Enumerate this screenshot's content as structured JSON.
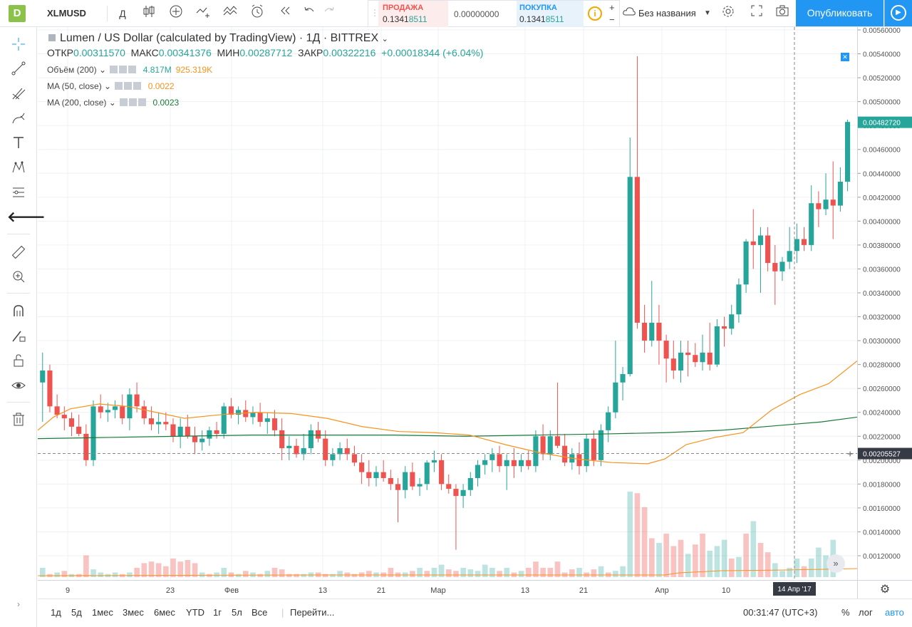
{
  "toolbar": {
    "logo": "D",
    "symbol": "XLMUSD",
    "interval": "Д",
    "sell": {
      "label": "ПРОДАЖА",
      "price_main": "0.1341",
      "price_tail": "8511"
    },
    "spread": "0.00000000",
    "buy": {
      "label": "ПОКУПКА",
      "price_main": "0.1341",
      "price_tail": "8511"
    },
    "plus": "+",
    "minus": "−",
    "layout_name": "Без названия",
    "publish": "Опубликовать"
  },
  "legend": {
    "title": "Lumen / US Dollar (calculated by TradingView) · 1Д · BITTREX",
    "open_label": "ОТКР",
    "open_value": "0.00311570",
    "high_label": "МАКС",
    "high_value": "0.00341376",
    "low_label": "МИН",
    "low_value": "0.00287712",
    "close_label": "ЗАКР",
    "close_value": "0.00322216",
    "change": "+0.00018344 (+6.04%)",
    "volume": {
      "label": "Объём (200)",
      "v1": "4.817M",
      "v2": "925.319K"
    },
    "ma50": {
      "label": "MA (50, close)",
      "value": "0.0022"
    },
    "ma200": {
      "label": "MA (200, close)",
      "value": "0.0023"
    }
  },
  "price_axis": {
    "ticks": [
      "0.00560000",
      "0.00540000",
      "0.00520000",
      "0.00500000",
      "0.00480000",
      "0.00460000",
      "0.00440000",
      "0.00420000",
      "0.00400000",
      "0.00380000",
      "0.00360000",
      "0.00340000",
      "0.00320000",
      "0.00300000",
      "0.00280000",
      "0.00260000",
      "0.00240000",
      "0.00220000",
      "0.00200000",
      "0.00180000",
      "0.00160000",
      "0.00140000",
      "0.00120000"
    ],
    "last_price": "0.00482720",
    "crosshair_price": "0.00205527"
  },
  "time_axis": {
    "labels": [
      "9",
      "23",
      "Фев",
      "13",
      "21",
      "Мар",
      "13",
      "21",
      "Апр",
      "10",
      "18"
    ],
    "crosshair_date": "14 Апр '17"
  },
  "bottom": {
    "ranges": [
      "1д",
      "5д",
      "1мес",
      "3мес",
      "6мес",
      "YTD",
      "1г",
      "5л",
      "Все"
    ],
    "goto": "Перейти...",
    "clock": "00:31:47 (UTC+3)",
    "percent": "%",
    "log": "лог",
    "auto": "авто"
  },
  "colors": {
    "up": "#26a69a",
    "down": "#ef5350",
    "ma50": "#f7931e",
    "ma200": "#1b7a3a",
    "accent": "#2196f3"
  },
  "chart_data": {
    "type": "candlestick",
    "ylim": [
      0.0011,
      0.0056
    ],
    "candles": [
      [
        0.00265,
        0.0029,
        0.00232,
        0.00275
      ],
      [
        0.00275,
        0.0028,
        0.0024,
        0.00245
      ],
      [
        0.00245,
        0.00255,
        0.00235,
        0.00238
      ],
      [
        0.00238,
        0.00245,
        0.00225,
        0.00235
      ],
      [
        0.00235,
        0.0024,
        0.0022,
        0.00228
      ],
      [
        0.00228,
        0.00238,
        0.0022,
        0.00222
      ],
      [
        0.00222,
        0.0023,
        0.00195,
        0.002
      ],
      [
        0.002,
        0.0025,
        0.00195,
        0.00245
      ],
      [
        0.00245,
        0.00255,
        0.00235,
        0.0024
      ],
      [
        0.0024,
        0.00248,
        0.00232,
        0.00242
      ],
      [
        0.00242,
        0.0025,
        0.00235,
        0.00245
      ],
      [
        0.00245,
        0.00255,
        0.0023,
        0.00235
      ],
      [
        0.00235,
        0.0026,
        0.00225,
        0.00255
      ],
      [
        0.00255,
        0.00265,
        0.0024,
        0.00245
      ],
      [
        0.00245,
        0.0025,
        0.0023,
        0.00235
      ],
      [
        0.00235,
        0.00245,
        0.00225,
        0.0023
      ],
      [
        0.0023,
        0.0024,
        0.00222,
        0.00232
      ],
      [
        0.00232,
        0.0024,
        0.00225,
        0.0023
      ],
      [
        0.0023,
        0.00235,
        0.00215,
        0.0022
      ],
      [
        0.0022,
        0.00235,
        0.0021,
        0.00228
      ],
      [
        0.00228,
        0.00238,
        0.00218,
        0.0022
      ],
      [
        0.0022,
        0.00228,
        0.00205,
        0.00215
      ],
      [
        0.00215,
        0.00225,
        0.00208,
        0.00218
      ],
      [
        0.00218,
        0.00228,
        0.00212,
        0.00225
      ],
      [
        0.00225,
        0.00232,
        0.00218,
        0.00222
      ],
      [
        0.00222,
        0.00248,
        0.00218,
        0.00245
      ],
      [
        0.00245,
        0.00252,
        0.00235,
        0.00238
      ],
      [
        0.00238,
        0.00245,
        0.0023,
        0.00242
      ],
      [
        0.00242,
        0.0025,
        0.00232,
        0.00236
      ],
      [
        0.00236,
        0.00245,
        0.0023,
        0.0024
      ],
      [
        0.0024,
        0.00248,
        0.00228,
        0.00232
      ],
      [
        0.00232,
        0.0024,
        0.00222,
        0.00235
      ],
      [
        0.00235,
        0.00242,
        0.0022,
        0.00225
      ],
      [
        0.00225,
        0.00235,
        0.002,
        0.0021
      ],
      [
        0.0021,
        0.0022,
        0.002,
        0.00212
      ],
      [
        0.00212,
        0.00218,
        0.00202,
        0.00205
      ],
      [
        0.00205,
        0.00222,
        0.002,
        0.0021
      ],
      [
        0.0021,
        0.0023,
        0.00205,
        0.00225
      ],
      [
        0.00225,
        0.00232,
        0.00215,
        0.00218
      ],
      [
        0.00218,
        0.00225,
        0.00195,
        0.002
      ],
      [
        0.002,
        0.0021,
        0.00195,
        0.00205
      ],
      [
        0.00205,
        0.00215,
        0.002,
        0.0021
      ],
      [
        0.0021,
        0.00218,
        0.002,
        0.00205
      ],
      [
        0.00205,
        0.00212,
        0.00195,
        0.00198
      ],
      [
        0.00198,
        0.00205,
        0.0018,
        0.0019
      ],
      [
        0.0019,
        0.002,
        0.00178,
        0.00185
      ],
      [
        0.00185,
        0.00195,
        0.00178,
        0.0019
      ],
      [
        0.0019,
        0.002,
        0.00182,
        0.00185
      ],
      [
        0.00185,
        0.00192,
        0.00175,
        0.0018
      ],
      [
        0.0018,
        0.00185,
        0.00148,
        0.00175
      ],
      [
        0.00175,
        0.00195,
        0.00168,
        0.0019
      ],
      [
        0.0019,
        0.00198,
        0.00175,
        0.00178
      ],
      [
        0.00178,
        0.00185,
        0.0017,
        0.0018
      ],
      [
        0.0018,
        0.002,
        0.00175,
        0.00198
      ],
      [
        0.00198,
        0.00208,
        0.0019,
        0.002
      ],
      [
        0.002,
        0.00205,
        0.00175,
        0.0018
      ],
      [
        0.0018,
        0.00188,
        0.00172,
        0.00176
      ],
      [
        0.00176,
        0.0018,
        0.00125,
        0.0017
      ],
      [
        0.0017,
        0.0018,
        0.0016,
        0.00175
      ],
      [
        0.00175,
        0.0019,
        0.0017,
        0.00185
      ],
      [
        0.00185,
        0.002,
        0.00178,
        0.00196
      ],
      [
        0.00196,
        0.00205,
        0.00188,
        0.002
      ],
      [
        0.002,
        0.0021,
        0.0019,
        0.00205
      ],
      [
        0.00205,
        0.00212,
        0.0019,
        0.00195
      ],
      [
        0.00195,
        0.00205,
        0.00175,
        0.002
      ],
      [
        0.002,
        0.0021,
        0.00185,
        0.00195
      ],
      [
        0.00195,
        0.00205,
        0.0019,
        0.002
      ],
      [
        0.002,
        0.00208,
        0.00192,
        0.00195
      ],
      [
        0.00195,
        0.00225,
        0.0019,
        0.0022
      ],
      [
        0.0022,
        0.0023,
        0.002,
        0.00205
      ],
      [
        0.00205,
        0.00225,
        0.002,
        0.0022
      ],
      [
        0.0022,
        0.00265,
        0.0021,
        0.00212
      ],
      [
        0.00212,
        0.00222,
        0.00195,
        0.00198
      ],
      [
        0.00198,
        0.0021,
        0.00192,
        0.00205
      ],
      [
        0.00205,
        0.00215,
        0.00188,
        0.00195
      ],
      [
        0.00195,
        0.00222,
        0.0019,
        0.00218
      ],
      [
        0.00218,
        0.00225,
        0.00195,
        0.002
      ],
      [
        0.002,
        0.0023,
        0.00195,
        0.00225
      ],
      [
        0.00225,
        0.00245,
        0.00215,
        0.0024
      ],
      [
        0.0024,
        0.003,
        0.00235,
        0.00265
      ],
      [
        0.00265,
        0.00278,
        0.0025,
        0.00272
      ],
      [
        0.00272,
        0.0047,
        0.0027,
        0.00437
      ],
      [
        0.00437,
        0.00538,
        0.0031,
        0.00315
      ],
      [
        0.00315,
        0.0033,
        0.0029,
        0.003
      ],
      [
        0.003,
        0.0035,
        0.00295,
        0.00315
      ],
      [
        0.00315,
        0.0033,
        0.0028,
        0.003
      ],
      [
        0.003,
        0.00305,
        0.00265,
        0.00285
      ],
      [
        0.00285,
        0.003,
        0.00268,
        0.00275
      ],
      [
        0.00275,
        0.003,
        0.00265,
        0.0029
      ],
      [
        0.0029,
        0.003,
        0.0027,
        0.00288
      ],
      [
        0.00288,
        0.00298,
        0.00278,
        0.00282
      ],
      [
        0.00282,
        0.00305,
        0.00275,
        0.0029
      ],
      [
        0.0029,
        0.00315,
        0.00275,
        0.0028
      ],
      [
        0.0028,
        0.00318,
        0.00278,
        0.00312
      ],
      [
        0.00312,
        0.0032,
        0.00295,
        0.0031
      ],
      [
        0.0031,
        0.0033,
        0.00305,
        0.00322
      ],
      [
        0.00322,
        0.00352,
        0.00315,
        0.00347
      ],
      [
        0.00347,
        0.00385,
        0.0034,
        0.00383
      ],
      [
        0.00383,
        0.0041,
        0.0036,
        0.0038
      ],
      [
        0.0038,
        0.00395,
        0.0034,
        0.00388
      ],
      [
        0.00388,
        0.00395,
        0.00358,
        0.00365
      ],
      [
        0.00365,
        0.0038,
        0.0033,
        0.00358
      ],
      [
        0.00358,
        0.0037,
        0.0035,
        0.00366
      ],
      [
        0.00366,
        0.00395,
        0.0036,
        0.00375
      ],
      [
        0.00375,
        0.00398,
        0.00365,
        0.00385
      ],
      [
        0.00385,
        0.00395,
        0.00375,
        0.0038
      ],
      [
        0.0038,
        0.0043,
        0.00375,
        0.00415
      ],
      [
        0.00415,
        0.00425,
        0.00395,
        0.0041
      ],
      [
        0.0041,
        0.0044,
        0.00405,
        0.00418
      ],
      [
        0.00418,
        0.0045,
        0.00385,
        0.00413
      ],
      [
        0.00413,
        0.00445,
        0.00408,
        0.00433
      ],
      [
        0.00433,
        0.00485,
        0.00425,
        0.00483
      ]
    ],
    "volumes": [
      [
        0.0006,
        0
      ],
      [
        0.0002,
        1
      ],
      [
        0.0003,
        0
      ],
      [
        0.0004,
        1
      ],
      [
        0.0002,
        0
      ],
      [
        0.0002,
        1
      ],
      [
        0.0014,
        1
      ],
      [
        0.0005,
        0
      ],
      [
        0.0003,
        0
      ],
      [
        0.0002,
        0
      ],
      [
        0.0003,
        0
      ],
      [
        0.0002,
        1
      ],
      [
        0.0003,
        0
      ],
      [
        0.0006,
        1
      ],
      [
        0.0009,
        1
      ],
      [
        0.001,
        1
      ],
      [
        0.0009,
        1
      ],
      [
        0.0007,
        1
      ],
      [
        0.0012,
        1
      ],
      [
        0.001,
        1
      ],
      [
        0.0011,
        1
      ],
      [
        0.0009,
        1
      ],
      [
        0.0003,
        0
      ],
      [
        0.0002,
        1
      ],
      [
        0.0003,
        0
      ],
      [
        0.0006,
        0
      ],
      [
        0.0003,
        1
      ],
      [
        0.0002,
        0
      ],
      [
        0.0004,
        1
      ],
      [
        0.0003,
        0
      ],
      [
        0.0002,
        1
      ],
      [
        0.0004,
        0
      ],
      [
        0.0006,
        1
      ],
      [
        0.0005,
        1
      ],
      [
        0.0002,
        1
      ],
      [
        0.0002,
        1
      ],
      [
        0.0002,
        0
      ],
      [
        0.0003,
        0
      ],
      [
        0.0003,
        1
      ],
      [
        0.0002,
        1
      ],
      [
        0.0002,
        0
      ],
      [
        0.0004,
        0
      ],
      [
        0.0003,
        1
      ],
      [
        0.0002,
        1
      ],
      [
        0.0003,
        1
      ],
      [
        0.0004,
        1
      ],
      [
        0.0003,
        0
      ],
      [
        0.0003,
        1
      ],
      [
        0.0006,
        1
      ],
      [
        0.0003,
        1
      ],
      [
        0.0003,
        0
      ],
      [
        0.0004,
        1
      ],
      [
        0.0006,
        0
      ],
      [
        0.0004,
        1
      ],
      [
        0.0006,
        0
      ],
      [
        0.0008,
        0
      ],
      [
        0.0005,
        1
      ],
      [
        0.0004,
        1
      ],
      [
        0.0006,
        0
      ],
      [
        0.0005,
        0
      ],
      [
        0.0004,
        0
      ],
      [
        0.0008,
        0
      ],
      [
        0.0006,
        0
      ],
      [
        0.0004,
        1
      ],
      [
        0.0006,
        0
      ],
      [
        0.0003,
        1
      ],
      [
        0.0004,
        0
      ],
      [
        0.0006,
        1
      ],
      [
        0.001,
        1
      ],
      [
        0.0006,
        1
      ],
      [
        0.0006,
        1
      ],
      [
        0.001,
        1
      ],
      [
        0.0003,
        1
      ],
      [
        0.0005,
        1
      ],
      [
        0.0006,
        0
      ],
      [
        0.0003,
        1
      ],
      [
        0.0005,
        1
      ],
      [
        0.0007,
        0
      ],
      [
        0.0003,
        1
      ],
      [
        0.0004,
        0
      ],
      [
        0.0007,
        0
      ],
      [
        0.0055,
        0
      ],
      [
        0.0054,
        1
      ],
      [
        0.0045,
        1
      ],
      [
        0.0025,
        1
      ],
      [
        0.0022,
        0
      ],
      [
        0.0028,
        1
      ],
      [
        0.002,
        1
      ],
      [
        0.0024,
        1
      ],
      [
        0.0015,
        0
      ],
      [
        0.0021,
        1
      ],
      [
        0.0028,
        1
      ],
      [
        0.0017,
        0
      ],
      [
        0.002,
        0
      ],
      [
        0.0024,
        0
      ],
      [
        0.0012,
        1
      ],
      [
        0.0013,
        0
      ],
      [
        0.0028,
        1
      ],
      [
        0.0036,
        0
      ],
      [
        0.0022,
        1
      ],
      [
        0.0016,
        1
      ],
      [
        0.0009,
        0
      ],
      [
        0.0004,
        0
      ],
      [
        0.0006,
        0
      ],
      [
        0.0012,
        0
      ],
      [
        0.0007,
        1
      ],
      [
        0.0012,
        0
      ],
      [
        0.0019,
        0
      ],
      [
        0.0014,
        0
      ],
      [
        0.0024,
        0
      ]
    ],
    "ma50": [
      [
        0,
        0.00225
      ],
      [
        22,
        0.00236
      ],
      [
        46,
        0.00243
      ],
      [
        86,
        0.00247
      ],
      [
        126,
        0.00245
      ],
      [
        166,
        0.0024
      ],
      [
        206,
        0.00235
      ],
      [
        256,
        0.00238
      ],
      [
        306,
        0.0024
      ],
      [
        356,
        0.00239
      ],
      [
        406,
        0.00235
      ],
      [
        456,
        0.00228
      ],
      [
        506,
        0.00224
      ],
      [
        556,
        0.00223
      ],
      [
        606,
        0.00221
      ],
      [
        656,
        0.00213
      ],
      [
        706,
        0.00206
      ],
      [
        756,
        0.00201
      ],
      [
        806,
        0.00198
      ],
      [
        856,
        0.00197
      ],
      [
        880,
        0.00201
      ],
      [
        910,
        0.00213
      ],
      [
        950,
        0.00219
      ],
      [
        990,
        0.00223
      ],
      [
        1030,
        0.00242
      ],
      [
        1070,
        0.00255
      ],
      [
        1110,
        0.00264
      ],
      [
        1150,
        0.00283
      ]
    ],
    "ma200": [
      [
        0,
        0.00218
      ],
      [
        100,
        0.00219
      ],
      [
        200,
        0.0022
      ],
      [
        300,
        0.00221
      ],
      [
        400,
        0.00221
      ],
      [
        500,
        0.00221
      ],
      [
        600,
        0.0022
      ],
      [
        700,
        0.00221
      ],
      [
        800,
        0.00222
      ],
      [
        880,
        0.00223
      ],
      [
        960,
        0.00225
      ],
      [
        1040,
        0.00229
      ],
      [
        1100,
        0.00232
      ],
      [
        1150,
        0.00236
      ]
    ],
    "crosshair": {
      "x": 1062,
      "price": 0.00205527
    },
    "last_price": 0.0048272
  }
}
